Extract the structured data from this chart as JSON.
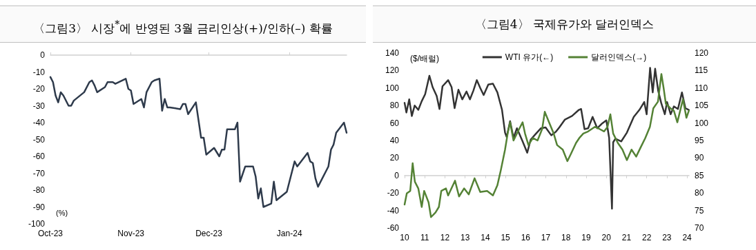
{
  "chart_data": [
    {
      "type": "line",
      "title": "〈그림3〉 시장$^{*}$에 반영된 3월 금리인상(+)/인하(–) 확률",
      "ylabel": "(%)",
      "x": [
        "2023-10-01",
        "2023-10-02",
        "2023-10-03",
        "2023-10-04",
        "2023-10-05",
        "2023-10-06",
        "2023-10-08",
        "2023-10-09",
        "2023-10-10",
        "2023-10-14",
        "2023-10-16",
        "2023-10-17",
        "2023-10-18",
        "2023-10-19",
        "2023-10-22",
        "2023-10-23",
        "2023-10-24",
        "2023-10-25",
        "2023-10-26",
        "2023-10-30",
        "2023-10-31",
        "2023-11-01",
        "2023-11-02",
        "2023-11-05",
        "2023-11-06",
        "2023-11-07",
        "2023-11-09",
        "2023-11-10",
        "2023-11-12",
        "2023-11-13",
        "2023-11-14",
        "2023-11-15",
        "2023-11-16",
        "2023-11-20",
        "2023-11-21",
        "2023-11-22",
        "2023-11-23",
        "2023-11-26",
        "2023-11-28",
        "2023-11-29",
        "2023-11-30",
        "2023-12-03",
        "2023-12-05",
        "2023-12-06",
        "2023-12-07",
        "2023-12-08",
        "2023-12-11",
        "2023-12-12",
        "2023-12-13",
        "2023-12-15",
        "2023-12-18",
        "2023-12-19",
        "2023-12-20",
        "2023-12-21",
        "2023-12-22",
        "2023-12-25",
        "2023-12-26",
        "2023-12-27",
        "2023-12-31",
        "2024-01-03",
        "2024-01-04",
        "2024-01-08",
        "2024-01-09",
        "2024-01-10",
        "2024-01-11",
        "2024-01-12",
        "2024-01-16",
        "2024-01-17",
        "2024-01-18",
        "2024-01-19",
        "2024-01-22",
        "2024-01-23"
      ],
      "series": [
        {
          "color": "#2e3a4b",
          "values": [
            -13,
            -16,
            -24,
            -28,
            -22,
            -24,
            -30,
            -30,
            -27,
            -22,
            -16,
            -15,
            -18,
            -22,
            -19,
            -16,
            -16,
            -16,
            -17,
            -14,
            -20,
            -21,
            -29,
            -26,
            -31,
            -22,
            -16,
            -15,
            -14,
            -33,
            -26,
            -31,
            -31,
            -32,
            -29,
            -29,
            -35,
            -28,
            -49,
            -49,
            -59,
            -55,
            -60,
            -56,
            -56,
            -44,
            -44,
            -40,
            -75,
            -66,
            -66,
            -72,
            -85,
            -79,
            -90,
            -88,
            -75,
            -86,
            -81,
            -63,
            -66,
            -58,
            -63,
            -64,
            -73,
            -78,
            -66,
            -56,
            -53,
            -46,
            -40,
            -46
          ]
        }
      ],
      "xlim": [
        "2023-10-01",
        "2024-01-23"
      ],
      "xticks": [
        {
          "value": "2023-10-01",
          "label": "Oct-23"
        },
        {
          "value": "2023-11-01",
          "label": "Nov-23"
        },
        {
          "value": "2023-12-01",
          "label": "Dec-23"
        },
        {
          "value": "2024-01-01",
          "label": "Jan-24"
        }
      ],
      "ylim": [
        -100,
        0
      ],
      "yticks": [
        -100,
        -90,
        -80,
        -70,
        -60,
        -50,
        -40,
        -30,
        -20,
        -10,
        0
      ]
    },
    {
      "type": "line",
      "title": "〈그림4〉 국제유가와 달러인덱스",
      "ylabel": "($/배럴)",
      "series": [
        {
          "name": "WTI 유가(←)",
          "color": "#333333",
          "x": [
            2010.0,
            2010.09,
            2010.23,
            2010.36,
            2010.5,
            2010.68,
            2010.85,
            2011.02,
            2011.23,
            2011.39,
            2011.59,
            2011.73,
            2011.88,
            2012.16,
            2012.33,
            2012.48,
            2012.67,
            2012.86,
            2013.07,
            2013.24,
            2013.41,
            2013.58,
            2013.75,
            2013.92,
            2014.15,
            2014.38,
            2014.6,
            2014.83,
            2014.98,
            2015.06,
            2015.23,
            2015.4,
            2015.57,
            2015.85,
            2016.08,
            2016.25,
            2016.48,
            2016.76,
            2016.99,
            2017.27,
            2017.5,
            2017.67,
            2017.95,
            2018.3,
            2018.64,
            2018.75,
            2018.92,
            2019.1,
            2019.32,
            2019.55,
            2019.77,
            2020.0,
            2020.14,
            2020.28,
            2020.34,
            2020.45,
            2020.74,
            2021.02,
            2021.36,
            2021.64,
            2021.88,
            2022.0,
            2022.17,
            2022.3,
            2022.42,
            2022.57,
            2022.72,
            2022.9,
            2023.01,
            2023.19,
            2023.35,
            2023.55,
            2023.75,
            2023.92,
            2024.09
          ],
          "values": [
            83,
            72,
            87,
            68,
            80,
            75,
            85,
            93,
            114,
            101,
            91,
            76,
            102,
            109,
            101,
            77,
            98,
            87,
            96,
            87,
            97,
            109,
            100,
            92,
            104,
            105,
            95,
            75,
            49,
            44,
            62,
            43,
            54,
            39,
            26,
            41,
            47,
            54,
            55,
            46,
            50,
            55,
            64,
            68,
            75,
            76,
            53,
            54,
            67,
            54,
            59,
            63,
            43,
            -38,
            38,
            42,
            39,
            49,
            67,
            75,
            84,
            70,
            123,
            95,
            122,
            97,
            83,
            70,
            84,
            70,
            79,
            76,
            95,
            77,
            75
          ]
        },
        {
          "name": "달러인덱스(→)",
          "color": "#548235",
          "axis": "y2",
          "x": [
            2010.0,
            2010.11,
            2010.28,
            2010.4,
            2010.51,
            2010.68,
            2010.85,
            2010.97,
            2011.19,
            2011.31,
            2011.53,
            2011.7,
            2011.82,
            2012.05,
            2012.16,
            2012.5,
            2012.7,
            2012.95,
            2013.18,
            2013.47,
            2013.75,
            2014.09,
            2014.38,
            2014.6,
            2014.77,
            2014.98,
            2015.11,
            2015.23,
            2015.4,
            2015.68,
            2015.85,
            2015.97,
            2016.14,
            2016.36,
            2016.59,
            2016.82,
            2016.95,
            2017.16,
            2017.39,
            2017.56,
            2017.84,
            2018.07,
            2018.24,
            2018.5,
            2018.66,
            2018.86,
            2019.1,
            2019.43,
            2019.66,
            2019.89,
            2020.06,
            2020.2,
            2020.34,
            2020.57,
            2020.8,
            2021.02,
            2021.25,
            2021.48,
            2021.7,
            2021.93,
            2022.16,
            2022.33,
            2022.56,
            2022.73,
            2022.84,
            2022.95,
            2023.18,
            2023.35,
            2023.52,
            2023.8,
            2023.97,
            2024.09
          ],
          "values": [
            76.7,
            79.9,
            80.6,
            88.5,
            83.2,
            81.3,
            76,
            80.6,
            77.3,
            73.1,
            74.4,
            76,
            80.6,
            81.3,
            79.3,
            83.5,
            79,
            81.3,
            79.6,
            84.2,
            80.3,
            80.6,
            79.3,
            82.2,
            86.5,
            92.4,
            97,
            100.2,
            95,
            98.3,
            100.2,
            97,
            93.7,
            95.7,
            95,
            98.3,
            103.2,
            100.2,
            97,
            93.7,
            92.4,
            89.1,
            91.1,
            94.3,
            95.7,
            97,
            97.6,
            98.9,
            98.3,
            97.6,
            98.9,
            102.5,
            97,
            94.3,
            92.4,
            89.4,
            92.4,
            90.4,
            93,
            95.7,
            98.9,
            104.2,
            106.1,
            114,
            110,
            105.5,
            104.2,
            103.5,
            100.2,
            106.8,
            101.5,
            103.5
          ]
        }
      ],
      "xlim": [
        2010,
        2024.1
      ],
      "xticks": [
        {
          "value": 2010,
          "label": "10"
        },
        {
          "value": 2011,
          "label": "11"
        },
        {
          "value": 2012,
          "label": "12"
        },
        {
          "value": 2013,
          "label": "13"
        },
        {
          "value": 2014,
          "label": "14"
        },
        {
          "value": 2015,
          "label": "15"
        },
        {
          "value": 2016,
          "label": "16"
        },
        {
          "value": 2017,
          "label": "17"
        },
        {
          "value": 2018,
          "label": "18"
        },
        {
          "value": 2019,
          "label": "19"
        },
        {
          "value": 2020,
          "label": "20"
        },
        {
          "value": 2021,
          "label": "21"
        },
        {
          "value": 2022,
          "label": "22"
        },
        {
          "value": 2023,
          "label": "23"
        },
        {
          "value": 2024,
          "label": "24"
        }
      ],
      "ylim": [
        -60,
        140
      ],
      "yticks": [
        -60,
        -40,
        -20,
        0,
        20,
        40,
        60,
        80,
        100,
        120,
        140
      ],
      "y2lim": [
        70,
        120
      ],
      "y2ticks": [
        70,
        75,
        80,
        85,
        90,
        95,
        100,
        105,
        110,
        115,
        120
      ],
      "legend": "top"
    }
  ]
}
